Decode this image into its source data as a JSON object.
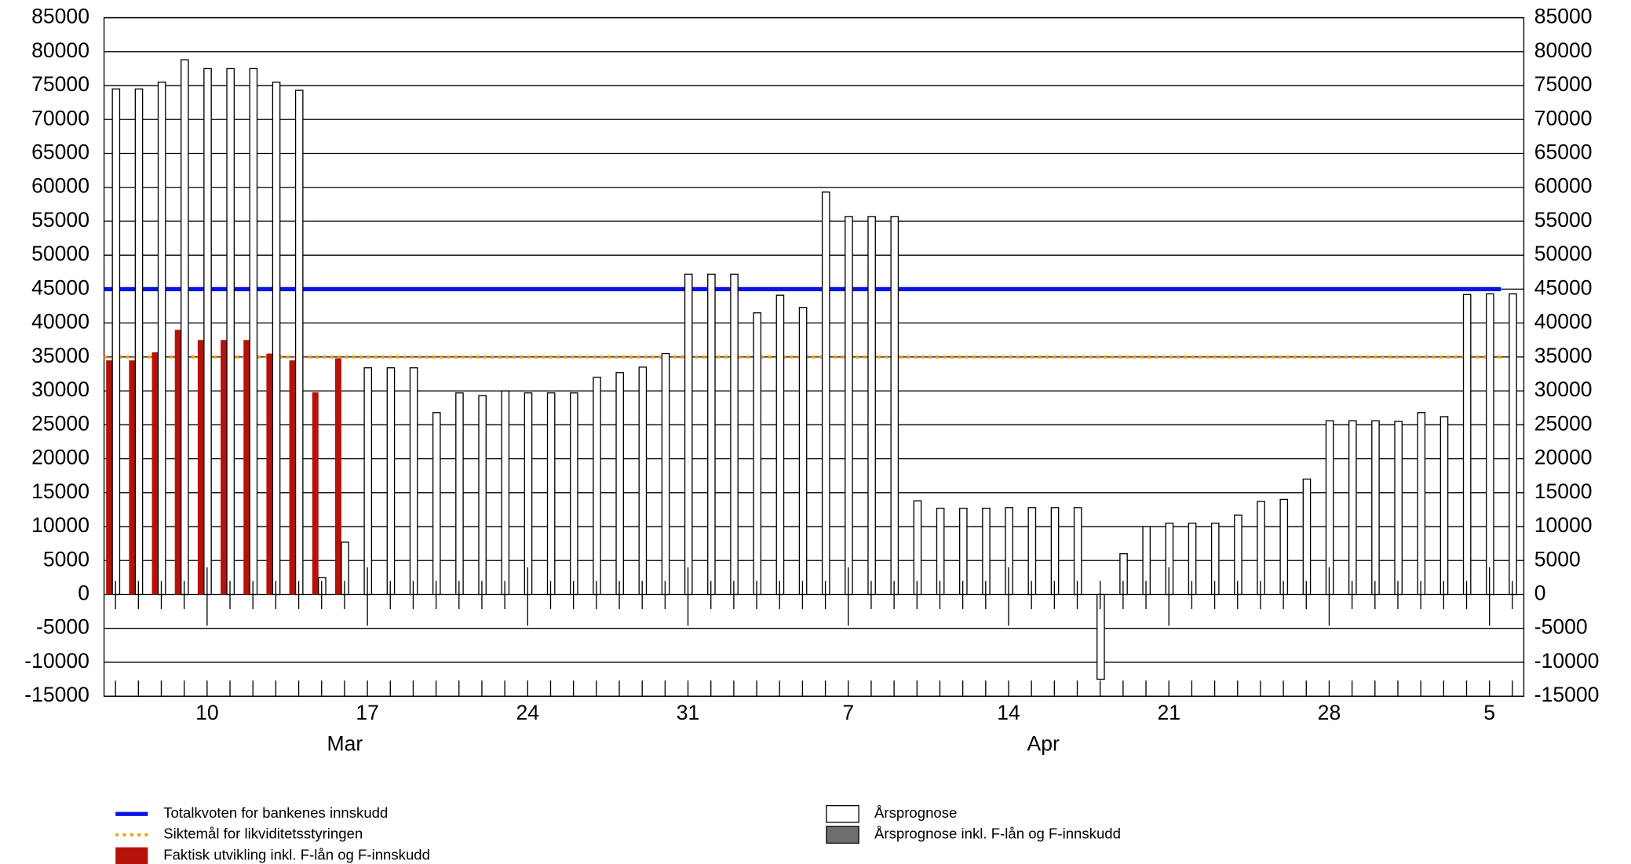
{
  "chart_data": {
    "type": "bar",
    "categories": [
      null,
      null,
      null,
      null,
      "10",
      null,
      null,
      null,
      null,
      null,
      null,
      "17",
      null,
      null,
      null,
      null,
      null,
      null,
      "24",
      null,
      null,
      null,
      null,
      null,
      null,
      "31",
      null,
      null,
      null,
      null,
      null,
      null,
      "7",
      null,
      null,
      null,
      null,
      null,
      null,
      "14",
      null,
      null,
      null,
      null,
      null,
      null,
      "21",
      null,
      null,
      null,
      null,
      null,
      null,
      "28",
      null,
      null,
      null,
      null,
      null,
      null,
      "5",
      null
    ],
    "months": [
      "Mar",
      "Apr"
    ],
    "series": [
      {
        "name": "Faktisk utvikling inkl. F-lån og F-innskudd",
        "color": "#b5120b",
        "values": [
          34500,
          34500,
          35700,
          39000,
          37500,
          37500,
          37500,
          35500,
          34500,
          29800,
          34800,
          null,
          null,
          null,
          null,
          null,
          null,
          null,
          null,
          null,
          null,
          null,
          null,
          null,
          null,
          null,
          null,
          null,
          null,
          null,
          null,
          null,
          null,
          null,
          null,
          null,
          null,
          null,
          null,
          null,
          null,
          null,
          null,
          null,
          null,
          null,
          null,
          null,
          null,
          null,
          null,
          null,
          null,
          null,
          null,
          null,
          null,
          null,
          null,
          null,
          null,
          null
        ]
      },
      {
        "name": "Årsprognose",
        "color": "#ffffff",
        "values": [
          74500,
          74500,
          75500,
          78800,
          77500,
          77500,
          77500,
          75500,
          74300,
          2500,
          7700,
          33400,
          33400,
          33400,
          26800,
          29700,
          29300,
          30000,
          29700,
          29700,
          29700,
          32000,
          32700,
          33500,
          35500,
          47200,
          47200,
          47200,
          41500,
          44100,
          42300,
          59300,
          55700,
          55700,
          55700,
          13800,
          12700,
          12700,
          12700,
          12800,
          12800,
          12800,
          12800,
          -12500,
          6000,
          10000,
          10500,
          10500,
          10500,
          11700,
          13700,
          14000,
          17000,
          25600,
          25600,
          25600,
          25500,
          26800,
          26200,
          44200,
          44300,
          44300
        ]
      },
      {
        "name": "Årsprognose inkl. F-lån og F-innskudd",
        "color": "#6e6e6e",
        "values": [
          null,
          null,
          null,
          null,
          null,
          null,
          null,
          null,
          null,
          null,
          null,
          null,
          null,
          null,
          null,
          null,
          null,
          null,
          null,
          null,
          null,
          null,
          null,
          null,
          null,
          null,
          null,
          null,
          null,
          null,
          null,
          null,
          null,
          null,
          null,
          null,
          null,
          null,
          null,
          null,
          null,
          null,
          null,
          null,
          null,
          null,
          null,
          null,
          null,
          null,
          null,
          null,
          null,
          null,
          null,
          null,
          null,
          null,
          null,
          null,
          null,
          null
        ]
      }
    ],
    "lines": [
      {
        "name": "Totalkvoten for bankenes innskudd",
        "color": "#0a14e6",
        "value": 45000,
        "style": "solid"
      },
      {
        "name": "Siktemål for likviditetsstyringen",
        "color": "#f5a00a",
        "value": 35000,
        "style": "dotted"
      }
    ],
    "ylim": [
      -15000,
      85000
    ],
    "yticks": [
      -15000,
      -10000,
      -5000,
      0,
      5000,
      10000,
      15000,
      20000,
      25000,
      30000,
      35000,
      40000,
      45000,
      50000,
      55000,
      60000,
      65000,
      70000,
      75000,
      80000,
      85000
    ],
    "grid": true
  }
}
